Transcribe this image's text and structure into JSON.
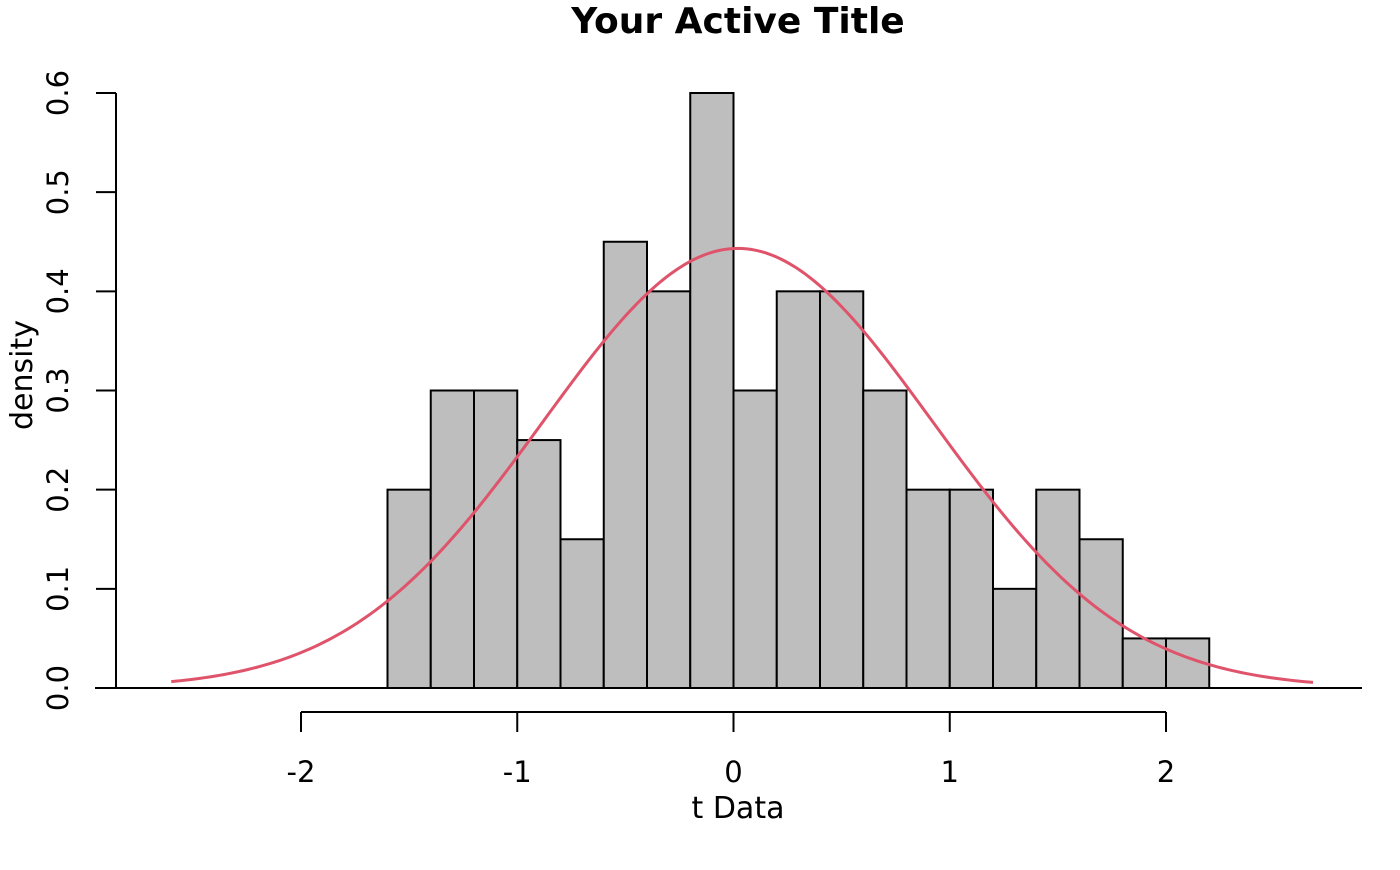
{
  "chart_data": {
    "type": "bar",
    "title": "Your Active Title",
    "xlabel": "t Data",
    "ylabel": "density",
    "xlim": [
      -2.6,
      2.7
    ],
    "ylim": [
      0,
      0.6
    ],
    "x_ticks": [
      -2,
      -1,
      0,
      1,
      2
    ],
    "x_tick_labels": [
      "-2",
      "-1",
      "0",
      "1",
      "2"
    ],
    "y_ticks": [
      0,
      0.1,
      0.2,
      0.3,
      0.4,
      0.5,
      0.6
    ],
    "y_tick_labels": [
      "0.0",
      "0.1",
      "0.2",
      "0.3",
      "0.4",
      "0.5",
      "0.6"
    ],
    "bins": [
      {
        "x0": -1.6,
        "x1": -1.4,
        "density": 0.2
      },
      {
        "x0": -1.4,
        "x1": -1.2,
        "density": 0.3
      },
      {
        "x0": -1.2,
        "x1": -1.0,
        "density": 0.3
      },
      {
        "x0": -1.0,
        "x1": -0.8,
        "density": 0.25
      },
      {
        "x0": -0.8,
        "x1": -0.6,
        "density": 0.15
      },
      {
        "x0": -0.6,
        "x1": -0.4,
        "density": 0.45
      },
      {
        "x0": -0.4,
        "x1": -0.2,
        "density": 0.4
      },
      {
        "x0": -0.2,
        "x1": 0.0,
        "density": 0.6
      },
      {
        "x0": 0.0,
        "x1": 0.2,
        "density": 0.3
      },
      {
        "x0": 0.2,
        "x1": 0.4,
        "density": 0.4
      },
      {
        "x0": 0.4,
        "x1": 0.6,
        "density": 0.4
      },
      {
        "x0": 0.6,
        "x1": 0.8,
        "density": 0.3
      },
      {
        "x0": 0.8,
        "x1": 1.0,
        "density": 0.2
      },
      {
        "x0": 1.0,
        "x1": 1.2,
        "density": 0.2
      },
      {
        "x0": 1.2,
        "x1": 1.4,
        "density": 0.1
      },
      {
        "x0": 1.4,
        "x1": 1.6,
        "density": 0.2
      },
      {
        "x0": 1.6,
        "x1": 1.8,
        "density": 0.15
      },
      {
        "x0": 1.8,
        "x1": 2.0,
        "density": 0.05
      },
      {
        "x0": 2.0,
        "x1": 2.2,
        "density": 0.05
      }
    ],
    "density_curve": {
      "mean": 0.02,
      "sd": 0.9,
      "x_range": [
        -2.6,
        2.68
      ]
    },
    "bar_color": "#bebebe",
    "bar_border_color": "#000000",
    "curve_color": "#df536b",
    "grid": false
  }
}
